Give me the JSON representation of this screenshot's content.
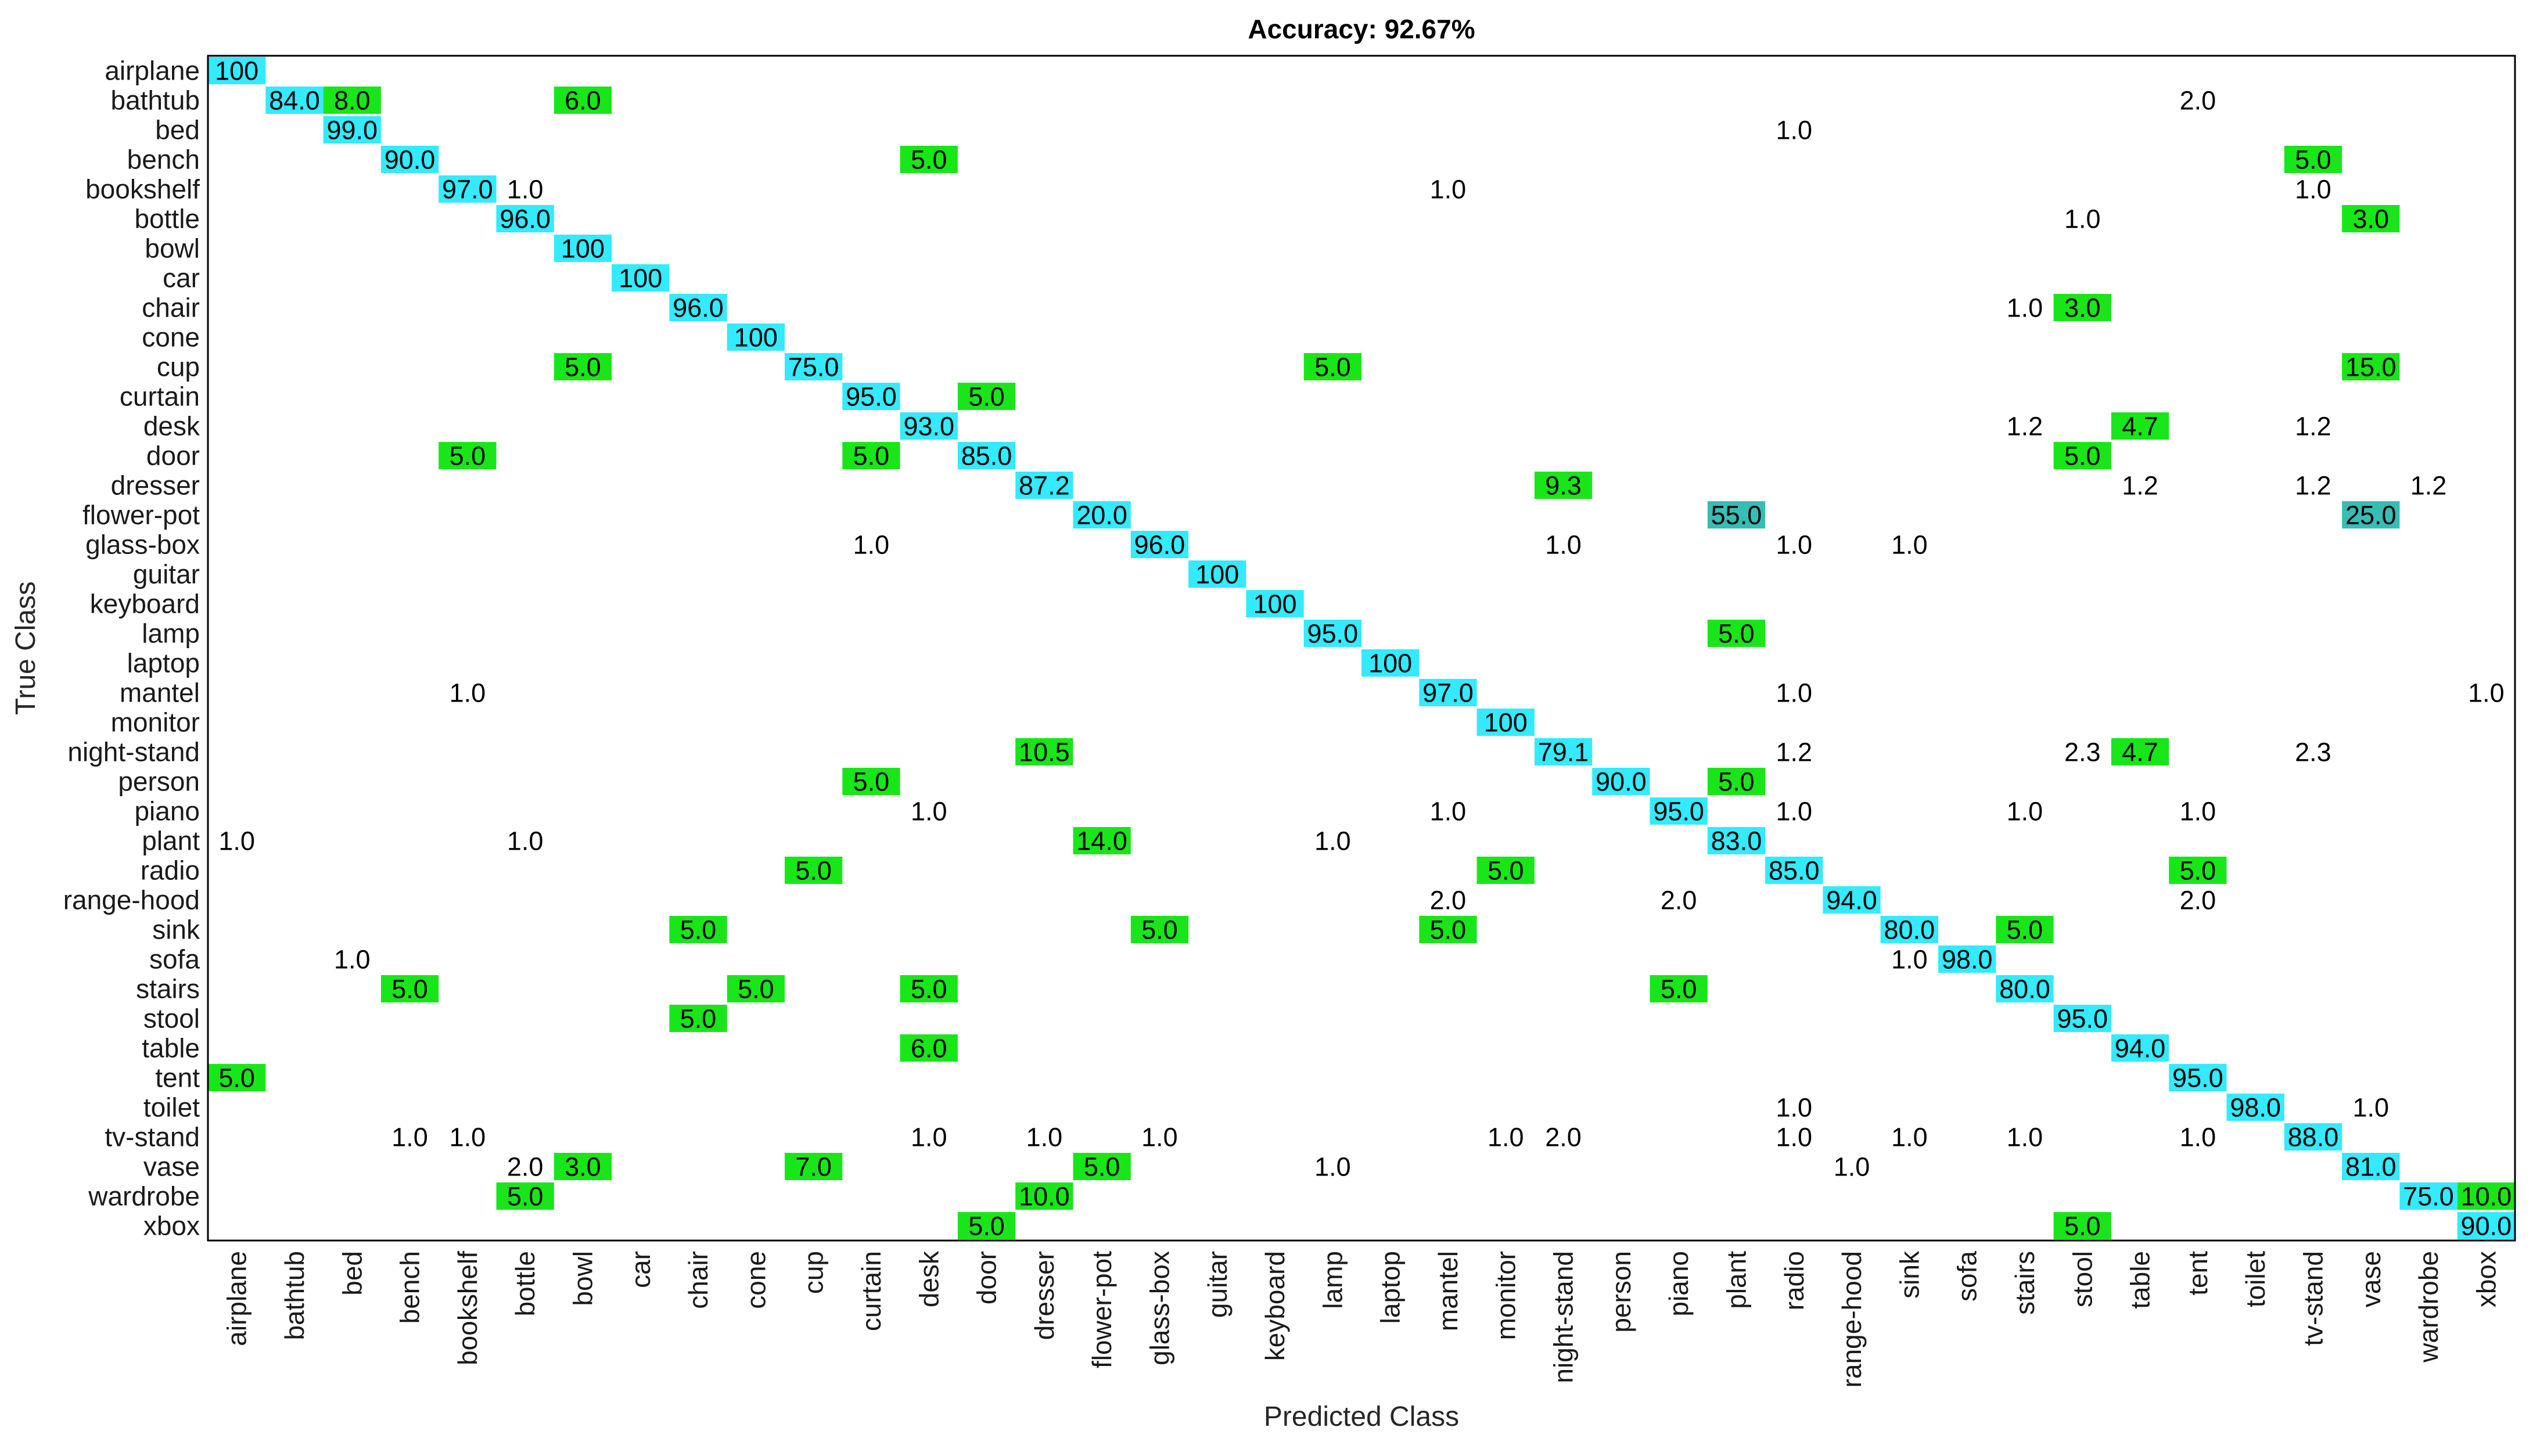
{
  "chart_data": {
    "type": "heatmap",
    "title": "Accuracy: 92.67%",
    "xlabel": "Predicted Class",
    "ylabel": "True Class",
    "classes": [
      "airplane",
      "bathtub",
      "bed",
      "bench",
      "bookshelf",
      "bottle",
      "bowl",
      "car",
      "chair",
      "cone",
      "cup",
      "curtain",
      "desk",
      "door",
      "dresser",
      "flower-pot",
      "glass-box",
      "guitar",
      "keyboard",
      "lamp",
      "laptop",
      "mantel",
      "monitor",
      "night-stand",
      "person",
      "piano",
      "plant",
      "radio",
      "range-hood",
      "sink",
      "sofa",
      "stairs",
      "stool",
      "table",
      "tent",
      "toilet",
      "tv-stand",
      "vase",
      "wardrobe",
      "xbox"
    ],
    "colors": {
      "diagonal": "#33eaff",
      "off_diagonal": "#19e619",
      "dominant_error": "#37bdb5",
      "frame": "#000000"
    },
    "cells": [
      {
        "row": "airplane",
        "col": "airplane",
        "value": "100"
      },
      {
        "row": "bathtub",
        "col": "bathtub",
        "value": "84.0"
      },
      {
        "row": "bathtub",
        "col": "bed",
        "value": "8.0"
      },
      {
        "row": "bathtub",
        "col": "bowl",
        "value": "6.0"
      },
      {
        "row": "bathtub",
        "col": "tent",
        "value": "2.0"
      },
      {
        "row": "bed",
        "col": "bed",
        "value": "99.0"
      },
      {
        "row": "bed",
        "col": "radio",
        "value": "1.0"
      },
      {
        "row": "bench",
        "col": "bench",
        "value": "90.0"
      },
      {
        "row": "bench",
        "col": "desk",
        "value": "5.0"
      },
      {
        "row": "bench",
        "col": "tv-stand",
        "value": "5.0"
      },
      {
        "row": "bookshelf",
        "col": "bookshelf",
        "value": "97.0"
      },
      {
        "row": "bookshelf",
        "col": "bottle",
        "value": "1.0"
      },
      {
        "row": "bookshelf",
        "col": "mantel",
        "value": "1.0"
      },
      {
        "row": "bookshelf",
        "col": "tv-stand",
        "value": "1.0"
      },
      {
        "row": "bottle",
        "col": "bottle",
        "value": "96.0"
      },
      {
        "row": "bottle",
        "col": "stool",
        "value": "1.0"
      },
      {
        "row": "bottle",
        "col": "vase",
        "value": "3.0"
      },
      {
        "row": "bowl",
        "col": "bowl",
        "value": "100"
      },
      {
        "row": "car",
        "col": "car",
        "value": "100"
      },
      {
        "row": "chair",
        "col": "chair",
        "value": "96.0"
      },
      {
        "row": "chair",
        "col": "stairs",
        "value": "1.0"
      },
      {
        "row": "chair",
        "col": "stool",
        "value": "3.0"
      },
      {
        "row": "cone",
        "col": "cone",
        "value": "100"
      },
      {
        "row": "cup",
        "col": "bowl",
        "value": "5.0"
      },
      {
        "row": "cup",
        "col": "cup",
        "value": "75.0"
      },
      {
        "row": "cup",
        "col": "lamp",
        "value": "5.0"
      },
      {
        "row": "cup",
        "col": "vase",
        "value": "15.0"
      },
      {
        "row": "curtain",
        "col": "curtain",
        "value": "95.0"
      },
      {
        "row": "curtain",
        "col": "door",
        "value": "5.0"
      },
      {
        "row": "desk",
        "col": "desk",
        "value": "93.0"
      },
      {
        "row": "desk",
        "col": "stairs",
        "value": "1.2"
      },
      {
        "row": "desk",
        "col": "table",
        "value": "4.7"
      },
      {
        "row": "desk",
        "col": "tv-stand",
        "value": "1.2"
      },
      {
        "row": "door",
        "col": "bookshelf",
        "value": "5.0"
      },
      {
        "row": "door",
        "col": "curtain",
        "value": "5.0"
      },
      {
        "row": "door",
        "col": "door",
        "value": "85.0"
      },
      {
        "row": "door",
        "col": "stool",
        "value": "5.0"
      },
      {
        "row": "dresser",
        "col": "dresser",
        "value": "87.2"
      },
      {
        "row": "dresser",
        "col": "night-stand",
        "value": "9.3"
      },
      {
        "row": "dresser",
        "col": "table",
        "value": "1.2"
      },
      {
        "row": "dresser",
        "col": "tv-stand",
        "value": "1.2"
      },
      {
        "row": "dresser",
        "col": "wardrobe",
        "value": "1.2"
      },
      {
        "row": "flower-pot",
        "col": "flower-pot",
        "value": "20.0"
      },
      {
        "row": "flower-pot",
        "col": "plant",
        "value": "55.0"
      },
      {
        "row": "flower-pot",
        "col": "vase",
        "value": "25.0"
      },
      {
        "row": "glass-box",
        "col": "curtain",
        "value": "1.0"
      },
      {
        "row": "glass-box",
        "col": "glass-box",
        "value": "96.0"
      },
      {
        "row": "glass-box",
        "col": "night-stand",
        "value": "1.0"
      },
      {
        "row": "glass-box",
        "col": "radio",
        "value": "1.0"
      },
      {
        "row": "glass-box",
        "col": "sink",
        "value": "1.0"
      },
      {
        "row": "guitar",
        "col": "guitar",
        "value": "100"
      },
      {
        "row": "keyboard",
        "col": "keyboard",
        "value": "100"
      },
      {
        "row": "lamp",
        "col": "lamp",
        "value": "95.0"
      },
      {
        "row": "lamp",
        "col": "plant",
        "value": "5.0"
      },
      {
        "row": "laptop",
        "col": "laptop",
        "value": "100"
      },
      {
        "row": "mantel",
        "col": "bookshelf",
        "value": "1.0"
      },
      {
        "row": "mantel",
        "col": "mantel",
        "value": "97.0"
      },
      {
        "row": "mantel",
        "col": "radio",
        "value": "1.0"
      },
      {
        "row": "mantel",
        "col": "xbox",
        "value": "1.0"
      },
      {
        "row": "monitor",
        "col": "monitor",
        "value": "100"
      },
      {
        "row": "night-stand",
        "col": "dresser",
        "value": "10.5"
      },
      {
        "row": "night-stand",
        "col": "night-stand",
        "value": "79.1"
      },
      {
        "row": "night-stand",
        "col": "radio",
        "value": "1.2"
      },
      {
        "row": "night-stand",
        "col": "stool",
        "value": "2.3"
      },
      {
        "row": "night-stand",
        "col": "table",
        "value": "4.7"
      },
      {
        "row": "night-stand",
        "col": "tv-stand",
        "value": "2.3"
      },
      {
        "row": "person",
        "col": "curtain",
        "value": "5.0"
      },
      {
        "row": "person",
        "col": "person",
        "value": "90.0"
      },
      {
        "row": "person",
        "col": "plant",
        "value": "5.0"
      },
      {
        "row": "piano",
        "col": "desk",
        "value": "1.0"
      },
      {
        "row": "piano",
        "col": "mantel",
        "value": "1.0"
      },
      {
        "row": "piano",
        "col": "piano",
        "value": "95.0"
      },
      {
        "row": "piano",
        "col": "radio",
        "value": "1.0"
      },
      {
        "row": "piano",
        "col": "stairs",
        "value": "1.0"
      },
      {
        "row": "piano",
        "col": "tent",
        "value": "1.0"
      },
      {
        "row": "plant",
        "col": "airplane",
        "value": "1.0"
      },
      {
        "row": "plant",
        "col": "bottle",
        "value": "1.0"
      },
      {
        "row": "plant",
        "col": "flower-pot",
        "value": "14.0"
      },
      {
        "row": "plant",
        "col": "lamp",
        "value": "1.0"
      },
      {
        "row": "plant",
        "col": "plant",
        "value": "83.0"
      },
      {
        "row": "radio",
        "col": "cup",
        "value": "5.0"
      },
      {
        "row": "radio",
        "col": "monitor",
        "value": "5.0"
      },
      {
        "row": "radio",
        "col": "radio",
        "value": "85.0"
      },
      {
        "row": "radio",
        "col": "tent",
        "value": "5.0"
      },
      {
        "row": "range-hood",
        "col": "mantel",
        "value": "2.0"
      },
      {
        "row": "range-hood",
        "col": "piano",
        "value": "2.0"
      },
      {
        "row": "range-hood",
        "col": "range-hood",
        "value": "94.0"
      },
      {
        "row": "range-hood",
        "col": "tent",
        "value": "2.0"
      },
      {
        "row": "sink",
        "col": "chair",
        "value": "5.0"
      },
      {
        "row": "sink",
        "col": "glass-box",
        "value": "5.0"
      },
      {
        "row": "sink",
        "col": "mantel",
        "value": "5.0"
      },
      {
        "row": "sink",
        "col": "sink",
        "value": "80.0"
      },
      {
        "row": "sink",
        "col": "stairs",
        "value": "5.0"
      },
      {
        "row": "sofa",
        "col": "bed",
        "value": "1.0"
      },
      {
        "row": "sofa",
        "col": "sink",
        "value": "1.0"
      },
      {
        "row": "sofa",
        "col": "sofa",
        "value": "98.0"
      },
      {
        "row": "stairs",
        "col": "bench",
        "value": "5.0"
      },
      {
        "row": "stairs",
        "col": "cone",
        "value": "5.0"
      },
      {
        "row": "stairs",
        "col": "desk",
        "value": "5.0"
      },
      {
        "row": "stairs",
        "col": "piano",
        "value": "5.0"
      },
      {
        "row": "stairs",
        "col": "stairs",
        "value": "80.0"
      },
      {
        "row": "stool",
        "col": "chair",
        "value": "5.0"
      },
      {
        "row": "stool",
        "col": "stool",
        "value": "95.0"
      },
      {
        "row": "table",
        "col": "desk",
        "value": "6.0"
      },
      {
        "row": "table",
        "col": "table",
        "value": "94.0"
      },
      {
        "row": "tent",
        "col": "airplane",
        "value": "5.0"
      },
      {
        "row": "tent",
        "col": "tent",
        "value": "95.0"
      },
      {
        "row": "toilet",
        "col": "radio",
        "value": "1.0"
      },
      {
        "row": "toilet",
        "col": "toilet",
        "value": "98.0"
      },
      {
        "row": "toilet",
        "col": "vase",
        "value": "1.0"
      },
      {
        "row": "tv-stand",
        "col": "bench",
        "value": "1.0"
      },
      {
        "row": "tv-stand",
        "col": "bookshelf",
        "value": "1.0"
      },
      {
        "row": "tv-stand",
        "col": "desk",
        "value": "1.0"
      },
      {
        "row": "tv-stand",
        "col": "dresser",
        "value": "1.0"
      },
      {
        "row": "tv-stand",
        "col": "glass-box",
        "value": "1.0"
      },
      {
        "row": "tv-stand",
        "col": "monitor",
        "value": "1.0"
      },
      {
        "row": "tv-stand",
        "col": "night-stand",
        "value": "2.0"
      },
      {
        "row": "tv-stand",
        "col": "radio",
        "value": "1.0"
      },
      {
        "row": "tv-stand",
        "col": "sink",
        "value": "1.0"
      },
      {
        "row": "tv-stand",
        "col": "stairs",
        "value": "1.0"
      },
      {
        "row": "tv-stand",
        "col": "tent",
        "value": "1.0"
      },
      {
        "row": "tv-stand",
        "col": "tv-stand",
        "value": "88.0"
      },
      {
        "row": "vase",
        "col": "bottle",
        "value": "2.0"
      },
      {
        "row": "vase",
        "col": "bowl",
        "value": "3.0"
      },
      {
        "row": "vase",
        "col": "cup",
        "value": "7.0"
      },
      {
        "row": "vase",
        "col": "flower-pot",
        "value": "5.0"
      },
      {
        "row": "vase",
        "col": "lamp",
        "value": "1.0"
      },
      {
        "row": "vase",
        "col": "range-hood",
        "value": "1.0"
      },
      {
        "row": "vase",
        "col": "vase",
        "value": "81.0"
      },
      {
        "row": "wardrobe",
        "col": "bottle",
        "value": "5.0"
      },
      {
        "row": "wardrobe",
        "col": "dresser",
        "value": "10.0"
      },
      {
        "row": "wardrobe",
        "col": "wardrobe",
        "value": "75.0"
      },
      {
        "row": "wardrobe",
        "col": "xbox",
        "value": "10.0"
      },
      {
        "row": "xbox",
        "col": "door",
        "value": "5.0"
      },
      {
        "row": "xbox",
        "col": "stool",
        "value": "5.0"
      },
      {
        "row": "xbox",
        "col": "xbox",
        "value": "90.0"
      }
    ]
  }
}
